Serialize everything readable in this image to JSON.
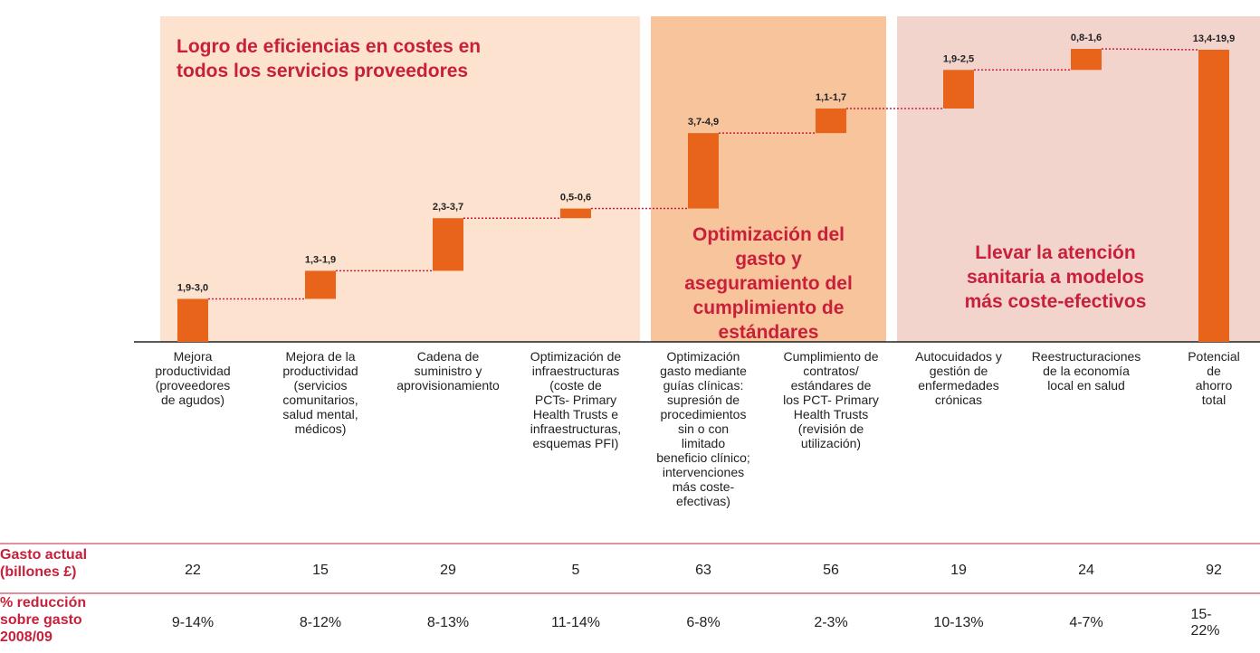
{
  "chart_data": {
    "type": "waterfall",
    "sections": [
      {
        "title": "Logro de eficiencias en costes en\ntodos los servicios proveedores"
      },
      {
        "title": "Optimización del\ngasto y\naseguramiento del\ncumplimiento de\nestándares"
      },
      {
        "title": "Llevar la atención\nsanitaria a modelos\nmás coste-efectivos"
      }
    ],
    "categories": [
      "Mejora\nproductividad\n(proveedores\nde agudos)",
      "Mejora de la\nproductividad\n(servicios\ncomunitarios,\nsalud mental,\nmédicos)",
      "Cadena de\nsuministro y\naprovisionamiento",
      "Optimización de\ninfraestructuras\n(coste de\nPCTs- Primary\nHealth Trusts e\ninfraestructuras,\nesquemas PFI)",
      "Optimización\ngasto mediante\nguías clínicas:\nsupresión de\nprocedimientos\nsin o con\nlimitado\nbeneficio clínico;\nintervenciones\nmás coste-\nefectivas)",
      "Cumplimiento de\ncontratos/\nestándares de\nlos PCT- Primary\nHealth Trusts\n(revisión de\nutilización)",
      "Autocuidados y\ngestión de\nenfermedades\ncrónicas",
      "Reestructuraciones\nde la economía\nlocal en salud",
      "Potencial de\nahorro total"
    ],
    "low": [
      1.9,
      1.3,
      2.3,
      0.5,
      3.7,
      1.1,
      1.9,
      0.8,
      13.4
    ],
    "high": [
      3.0,
      1.9,
      3.7,
      0.6,
      4.9,
      1.7,
      2.5,
      1.6,
      19.9
    ],
    "value_labels": [
      "1,9-3,0",
      "1,3-1,9",
      "2,3-3,7",
      "0,5-0,6",
      "3,7-4,9",
      "1,1-1,7",
      "1,9-2,5",
      "0,8-1,6",
      "13,4-19,9"
    ],
    "color": "#e8641b",
    "table": {
      "rows": [
        {
          "label": "Gasto actual\n(billones £)",
          "cells": [
            "22",
            "15",
            "29",
            "5",
            "63",
            "56",
            "19",
            "24",
            "92"
          ]
        },
        {
          "label": "% reducción\nsobre gasto\n2008/09",
          "cells": [
            "9-14%",
            "8-12%",
            "8-13%",
            "11-14%",
            "6-8%",
            "2-3%",
            "10-13%",
            "4-7%",
            "15-22%"
          ]
        }
      ]
    }
  }
}
